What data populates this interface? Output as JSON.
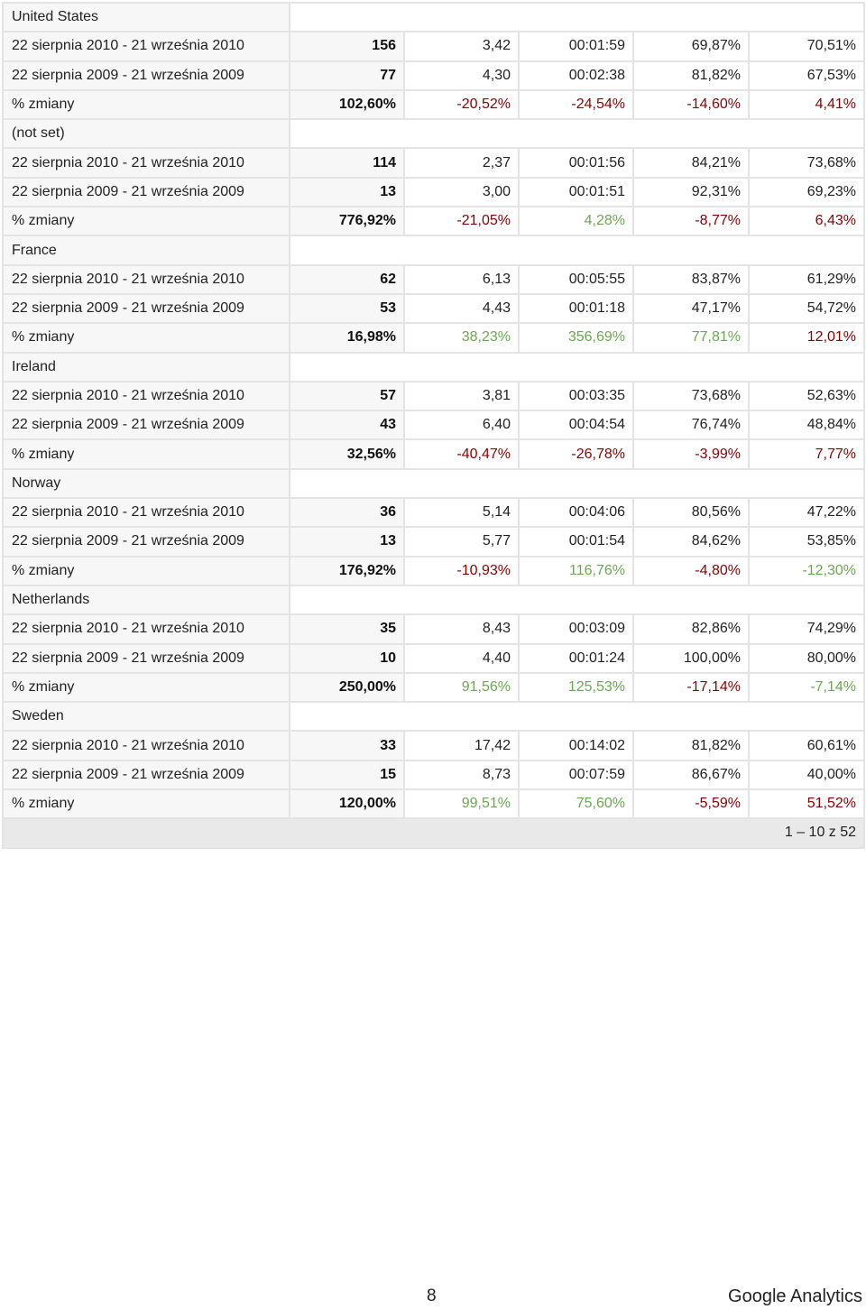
{
  "colors": {
    "positive": "#6aa84f",
    "negative": "#8b0000",
    "header_bg": "#f7f7f7",
    "footer_bg": "#e9e9e9"
  },
  "groups": [
    {
      "name": "United States",
      "rows": [
        {
          "label": "22 sierpnia 2010 - 21 września 2010",
          "values": [
            "156",
            "3,42",
            "00:01:59",
            "69,87%",
            "70,51%"
          ]
        },
        {
          "label": "22 sierpnia 2009 - 21 września 2009",
          "values": [
            "77",
            "4,30",
            "00:02:38",
            "81,82%",
            "67,53%"
          ]
        },
        {
          "label": "% zmiany",
          "values": [
            "102,60%",
            "-20,52%",
            "-24,54%",
            "-14,60%",
            "4,41%"
          ],
          "colors": [
            "pos",
            "neg",
            "neg",
            "neg",
            "neg"
          ]
        }
      ]
    },
    {
      "name": "(not set)",
      "rows": [
        {
          "label": "22 sierpnia 2010 - 21 września 2010",
          "values": [
            "114",
            "2,37",
            "00:01:56",
            "84,21%",
            "73,68%"
          ]
        },
        {
          "label": "22 sierpnia 2009 - 21 września 2009",
          "values": [
            "13",
            "3,00",
            "00:01:51",
            "92,31%",
            "69,23%"
          ]
        },
        {
          "label": "% zmiany",
          "values": [
            "776,92%",
            "-21,05%",
            "4,28%",
            "-8,77%",
            "6,43%"
          ],
          "colors": [
            "pos",
            "neg",
            "pos",
            "neg",
            "neg"
          ]
        }
      ]
    },
    {
      "name": "France",
      "rows": [
        {
          "label": "22 sierpnia 2010 - 21 września 2010",
          "values": [
            "62",
            "6,13",
            "00:05:55",
            "83,87%",
            "61,29%"
          ]
        },
        {
          "label": "22 sierpnia 2009 - 21 września 2009",
          "values": [
            "53",
            "4,43",
            "00:01:18",
            "47,17%",
            "54,72%"
          ]
        },
        {
          "label": "% zmiany",
          "values": [
            "16,98%",
            "38,23%",
            "356,69%",
            "77,81%",
            "12,01%"
          ],
          "colors": [
            "pos",
            "pos",
            "pos",
            "pos",
            "neg"
          ]
        }
      ]
    },
    {
      "name": "Ireland",
      "rows": [
        {
          "label": "22 sierpnia 2010 - 21 września 2010",
          "values": [
            "57",
            "3,81",
            "00:03:35",
            "73,68%",
            "52,63%"
          ]
        },
        {
          "label": "22 sierpnia 2009 - 21 września 2009",
          "values": [
            "43",
            "6,40",
            "00:04:54",
            "76,74%",
            "48,84%"
          ]
        },
        {
          "label": "% zmiany",
          "values": [
            "32,56%",
            "-40,47%",
            "-26,78%",
            "-3,99%",
            "7,77%"
          ],
          "colors": [
            "pos",
            "neg",
            "neg",
            "neg",
            "neg"
          ]
        }
      ]
    },
    {
      "name": "Norway",
      "rows": [
        {
          "label": "22 sierpnia 2010 - 21 września 2010",
          "values": [
            "36",
            "5,14",
            "00:04:06",
            "80,56%",
            "47,22%"
          ]
        },
        {
          "label": "22 sierpnia 2009 - 21 września 2009",
          "values": [
            "13",
            "5,77",
            "00:01:54",
            "84,62%",
            "53,85%"
          ]
        },
        {
          "label": "% zmiany",
          "values": [
            "176,92%",
            "-10,93%",
            "116,76%",
            "-4,80%",
            "-12,30%"
          ],
          "colors": [
            "pos",
            "neg",
            "pos",
            "neg",
            "pos"
          ]
        }
      ]
    },
    {
      "name": "Netherlands",
      "rows": [
        {
          "label": "22 sierpnia 2010 - 21 września 2010",
          "values": [
            "35",
            "8,43",
            "00:03:09",
            "82,86%",
            "74,29%"
          ]
        },
        {
          "label": "22 sierpnia 2009 - 21 września 2009",
          "values": [
            "10",
            "4,40",
            "00:01:24",
            "100,00%",
            "80,00%"
          ]
        },
        {
          "label": "% zmiany",
          "values": [
            "250,00%",
            "91,56%",
            "125,53%",
            "-17,14%",
            "-7,14%"
          ],
          "colors": [
            "pos",
            "pos",
            "pos",
            "neg",
            "pos"
          ]
        }
      ]
    },
    {
      "name": "Sweden",
      "rows": [
        {
          "label": "22 sierpnia 2010 - 21 września 2010",
          "values": [
            "33",
            "17,42",
            "00:14:02",
            "81,82%",
            "60,61%"
          ]
        },
        {
          "label": "22 sierpnia 2009 - 21 września 2009",
          "values": [
            "15",
            "8,73",
            "00:07:59",
            "86,67%",
            "40,00%"
          ]
        },
        {
          "label": "% zmiany",
          "values": [
            "120,00%",
            "99,51%",
            "75,60%",
            "-5,59%",
            "51,52%"
          ],
          "colors": [
            "pos",
            "pos",
            "pos",
            "neg",
            "neg"
          ]
        }
      ]
    }
  ],
  "pagination": "1 – 10 z 52",
  "page_number": "8",
  "brand": "Google Analytics"
}
